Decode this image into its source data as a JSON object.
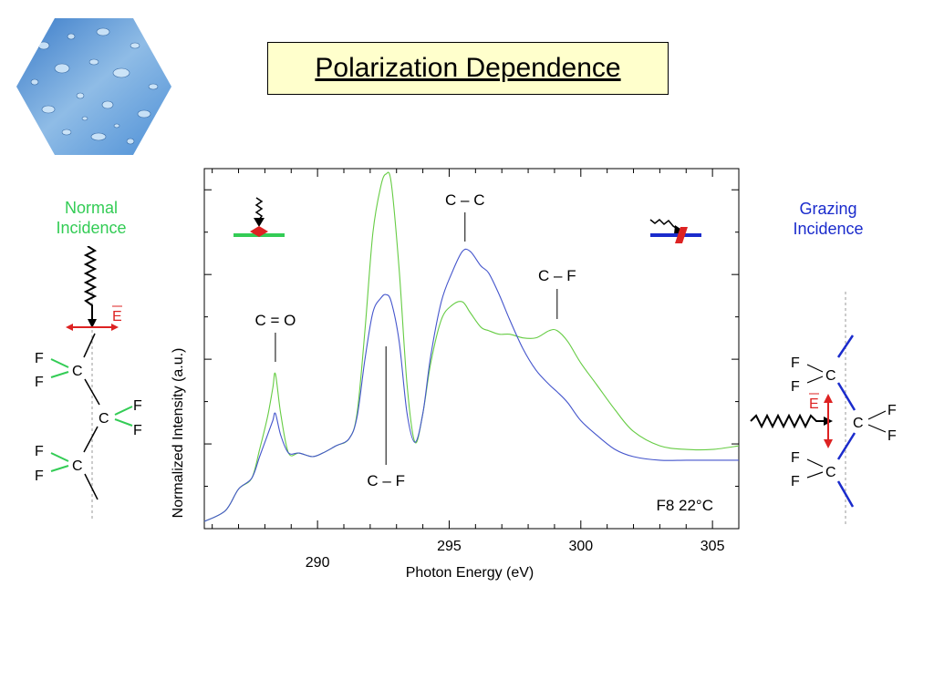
{
  "title": "Polarization Dependence",
  "normal_incidence": {
    "line1": "Normal",
    "line2": "Incidence",
    "color": "#33cc55"
  },
  "grazing_incidence": {
    "line1": "Grazing",
    "line2": "Incidence",
    "color": "#1a2bcc"
  },
  "field_label": "E",
  "molecule_labels": {
    "F": "F",
    "C": "C"
  },
  "chart_data": {
    "type": "line",
    "title": "",
    "xlabel": "Photon Energy (eV)",
    "ylabel": "Normalized Intensity (a.u.)",
    "xlim": [
      285.7,
      306
    ],
    "ylim": [
      0,
      1.0
    ],
    "xticks": [
      290,
      295,
      300,
      305
    ],
    "x_tick_labels": [
      "290",
      "295",
      "300",
      "305"
    ],
    "grid": false,
    "series": [
      {
        "name": "",
        "color": "#66cc44",
        "x": [
          285.7,
          286.5,
          287.0,
          287.5,
          287.8,
          288.1,
          288.3,
          288.4,
          288.6,
          288.9,
          289.3,
          289.8,
          290.2,
          290.7,
          291.2,
          291.5,
          291.8,
          292.1,
          292.4,
          292.6,
          292.8,
          293.1,
          293.4,
          293.7,
          294.0,
          294.3,
          294.7,
          295.1,
          295.5,
          295.8,
          296.2,
          296.5,
          296.9,
          297.3,
          297.8,
          298.3,
          298.8,
          299.1,
          299.5,
          300.0,
          300.6,
          301.3,
          302.0,
          303.0,
          304.0,
          305.0,
          306.0
        ],
        "y": [
          0.02,
          0.05,
          0.11,
          0.14,
          0.22,
          0.31,
          0.39,
          0.43,
          0.32,
          0.21,
          0.21,
          0.2,
          0.21,
          0.23,
          0.25,
          0.32,
          0.55,
          0.82,
          0.95,
          0.985,
          0.96,
          0.72,
          0.4,
          0.24,
          0.32,
          0.46,
          0.58,
          0.62,
          0.63,
          0.6,
          0.56,
          0.55,
          0.54,
          0.54,
          0.53,
          0.53,
          0.55,
          0.55,
          0.52,
          0.46,
          0.4,
          0.33,
          0.27,
          0.23,
          0.22,
          0.22,
          0.23
        ]
      },
      {
        "name": "",
        "color": "#4455cc",
        "x": [
          285.7,
          286.5,
          287.0,
          287.5,
          287.8,
          288.1,
          288.3,
          288.4,
          288.6,
          288.9,
          289.3,
          289.8,
          290.2,
          290.7,
          291.2,
          291.5,
          291.8,
          292.1,
          292.4,
          292.6,
          292.8,
          293.1,
          293.4,
          293.7,
          294.0,
          294.3,
          294.7,
          295.1,
          295.5,
          295.8,
          296.2,
          296.5,
          296.9,
          297.3,
          297.8,
          298.3,
          298.8,
          299.1,
          299.5,
          300.0,
          300.6,
          301.3,
          302.0,
          303.0,
          304.0,
          305.0,
          306.0
        ],
        "y": [
          0.02,
          0.05,
          0.11,
          0.14,
          0.2,
          0.26,
          0.3,
          0.32,
          0.26,
          0.21,
          0.21,
          0.2,
          0.21,
          0.23,
          0.25,
          0.31,
          0.47,
          0.6,
          0.64,
          0.65,
          0.63,
          0.52,
          0.32,
          0.24,
          0.32,
          0.48,
          0.63,
          0.71,
          0.77,
          0.77,
          0.73,
          0.71,
          0.65,
          0.58,
          0.5,
          0.44,
          0.4,
          0.38,
          0.35,
          0.3,
          0.26,
          0.22,
          0.2,
          0.19,
          0.19,
          0.19,
          0.19
        ]
      }
    ],
    "annotations": [
      {
        "text": "C = O",
        "x": 288.4
      },
      {
        "text": "C – F",
        "x": 292.6
      },
      {
        "text": "C – C",
        "x": 295.6
      },
      {
        "text": "C – F",
        "x": 299.1
      }
    ],
    "sample_label": "F8  22°C"
  }
}
